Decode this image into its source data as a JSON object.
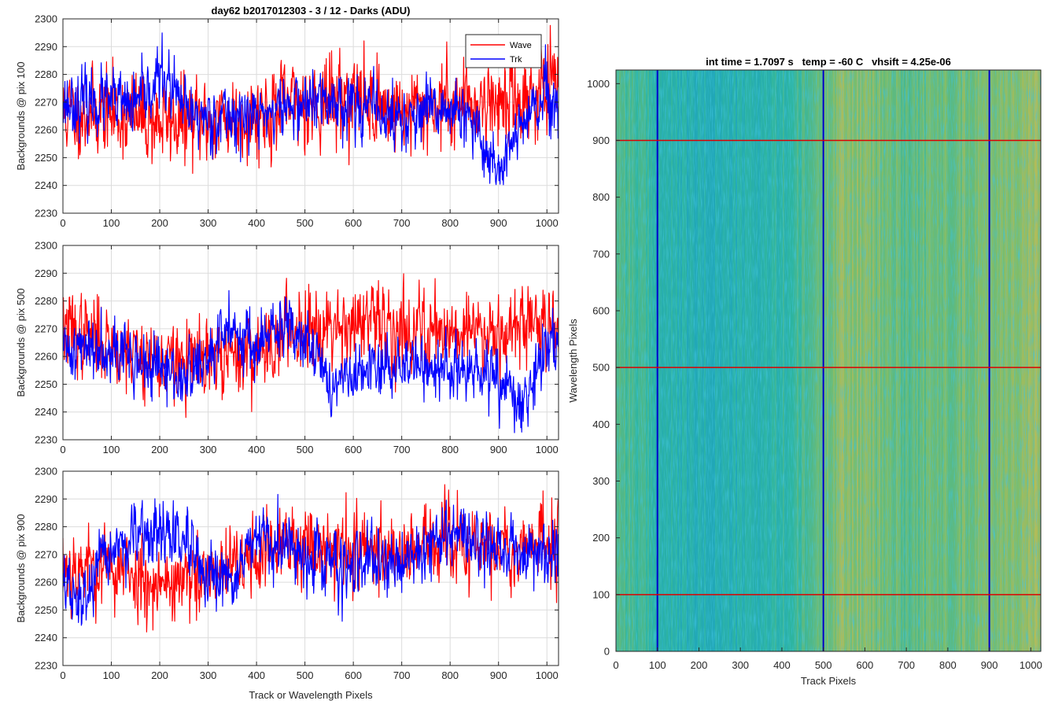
{
  "figure": {
    "main_title": "day62 b2017012303 - 3 / 12 - Darks (ADU)",
    "x_axis_label": "Track or Wavelength Pixels",
    "background": "#ffffff"
  },
  "chart_data": [
    {
      "type": "line",
      "title": "day62 b2017012303 - 3 / 12 - Darks (ADU)",
      "ylabel": "Backgrounds @ pix 100",
      "xlabel": "",
      "xlim": [
        0,
        1024
      ],
      "ylim": [
        2230,
        2300
      ],
      "xticks": [
        0,
        100,
        200,
        300,
        400,
        500,
        600,
        700,
        800,
        900,
        1000
      ],
      "yticks": [
        2230,
        2240,
        2250,
        2260,
        2270,
        2280,
        2290,
        2300
      ],
      "grid": true,
      "legend": {
        "placement": "top-right",
        "entries": [
          "Wave",
          "Trk"
        ]
      },
      "series": [
        {
          "name": "Wave",
          "color": "#ff0000",
          "noise": 7.5,
          "seed": 11,
          "x_points": [
            0,
            100,
            200,
            300,
            400,
            500,
            600,
            700,
            800,
            900,
            1024
          ],
          "y_points": [
            2266,
            2266,
            2263,
            2263,
            2266,
            2270,
            2272,
            2266,
            2270,
            2270,
            2275
          ]
        },
        {
          "name": "Trk",
          "color": "#0000ff",
          "noise": 5.5,
          "seed": 23,
          "x_points": [
            0,
            100,
            150,
            205,
            260,
            300,
            400,
            500,
            600,
            700,
            800,
            850,
            900,
            950,
            1000,
            1024
          ],
          "y_points": [
            2270,
            2270,
            2268,
            2280,
            2265,
            2265,
            2265,
            2270,
            2270,
            2263,
            2268,
            2260,
            2246,
            2262,
            2272,
            2262
          ]
        }
      ]
    },
    {
      "type": "line",
      "title": "",
      "ylabel": "Backgrounds @ pix 500",
      "xlabel": "",
      "xlim": [
        0,
        1024
      ],
      "ylim": [
        2230,
        2300
      ],
      "xticks": [
        0,
        100,
        200,
        300,
        400,
        500,
        600,
        700,
        800,
        900,
        1000
      ],
      "yticks": [
        2230,
        2240,
        2250,
        2260,
        2270,
        2280,
        2290,
        2300
      ],
      "grid": true,
      "series": [
        {
          "name": "Wave",
          "color": "#ff0000",
          "noise": 7.0,
          "seed": 37,
          "x_points": [
            0,
            100,
            200,
            300,
            400,
            500,
            600,
            700,
            800,
            900,
            1024
          ],
          "y_points": [
            2270,
            2265,
            2258,
            2258,
            2262,
            2272,
            2272,
            2270,
            2270,
            2270,
            2273
          ]
        },
        {
          "name": "Trk",
          "color": "#0000ff",
          "noise": 5.5,
          "seed": 41,
          "x_points": [
            0,
            100,
            150,
            250,
            300,
            350,
            400,
            450,
            500,
            550,
            600,
            700,
            800,
            900,
            950,
            1000,
            1024
          ],
          "y_points": [
            2262,
            2265,
            2258,
            2252,
            2258,
            2272,
            2263,
            2270,
            2270,
            2250,
            2252,
            2258,
            2255,
            2252,
            2240,
            2266,
            2265
          ]
        }
      ]
    },
    {
      "type": "line",
      "title": "",
      "ylabel": "Backgrounds @ pix 900",
      "xlabel": "Track or Wavelength Pixels",
      "xlim": [
        0,
        1024
      ],
      "ylim": [
        2230,
        2300
      ],
      "xticks": [
        0,
        100,
        200,
        300,
        400,
        500,
        600,
        700,
        800,
        900,
        1000
      ],
      "yticks": [
        2230,
        2240,
        2250,
        2260,
        2270,
        2280,
        2290,
        2300
      ],
      "grid": true,
      "series": [
        {
          "name": "Wave",
          "color": "#ff0000",
          "noise": 7.0,
          "seed": 53,
          "x_points": [
            0,
            100,
            200,
            300,
            400,
            500,
            600,
            700,
            800,
            900,
            1024
          ],
          "y_points": [
            2266,
            2265,
            2260,
            2260,
            2270,
            2275,
            2272,
            2272,
            2274,
            2272,
            2275
          ]
        },
        {
          "name": "Trk",
          "color": "#0000ff",
          "noise": 5.5,
          "seed": 67,
          "x_points": [
            0,
            30,
            100,
            200,
            250,
            300,
            350,
            400,
            500,
            600,
            700,
            800,
            900,
            1024
          ],
          "y_points": [
            2262,
            2250,
            2272,
            2278,
            2275,
            2258,
            2262,
            2275,
            2270,
            2265,
            2268,
            2278,
            2272,
            2270
          ]
        }
      ]
    },
    {
      "type": "heatmap",
      "title": "int time = 1.7097 s   temp = -60 C   vhsift = 4.25e-06",
      "xlabel": "Track Pixels",
      "ylabel": "Wavelength Pixels",
      "xlim": [
        0,
        1024
      ],
      "ylim": [
        0,
        1024
      ],
      "xticks": [
        0,
        100,
        200,
        300,
        400,
        500,
        600,
        700,
        800,
        900,
        1000
      ],
      "yticks": [
        0,
        100,
        200,
        300,
        400,
        500,
        600,
        700,
        800,
        900,
        1000
      ],
      "colormap": [
        "#1aa0c4",
        "#2eb5a0",
        "#7cbd6a",
        "#c9bb52"
      ],
      "column_profile": {
        "x": [
          0,
          100,
          200,
          300,
          400,
          460,
          540,
          600,
          700,
          800,
          900,
          1024
        ],
        "level": [
          0.55,
          0.28,
          0.18,
          0.22,
          0.3,
          0.45,
          0.78,
          0.72,
          0.55,
          0.62,
          0.7,
          0.8
        ]
      },
      "vertical_lines": {
        "x": [
          100,
          500,
          900
        ],
        "color": "#0000cc"
      },
      "horizontal_lines": {
        "y": [
          100,
          500,
          900
        ],
        "color": "#dd0000"
      }
    }
  ]
}
